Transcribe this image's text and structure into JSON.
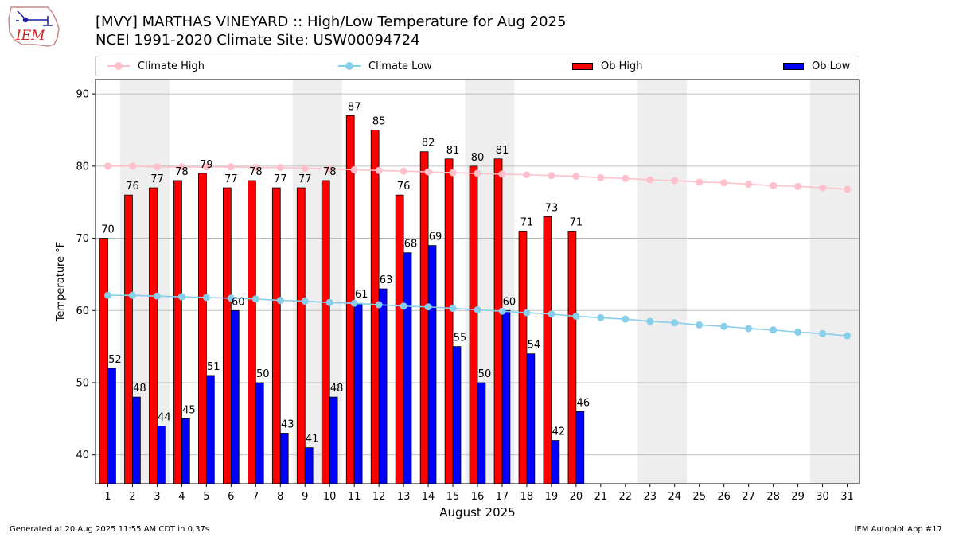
{
  "header": {
    "title_line1": "[MVY] MARTHAS VINEYARD :: High/Low Temperature for Aug 2025",
    "title_line2": "NCEI 1991-2020 Climate Site: USW00094724",
    "logo_text": "IEM"
  },
  "footer": {
    "generated": "Generated at 20 Aug 2025 11:55 AM CDT in 0.37s",
    "app": "IEM Autoplot App #17"
  },
  "colors": {
    "climate_high": "#ffc0cb",
    "climate_low": "#87ceeb",
    "ob_high": "#ff0000",
    "ob_low": "#0000ff",
    "weekend_band": "#eeeeee",
    "grid": "#b0b0b0"
  },
  "chart_data": {
    "type": "bar",
    "xlabel": "August 2025",
    "ylabel": "Temperature °F",
    "ylim": [
      36,
      92
    ],
    "yticks": [
      40,
      50,
      60,
      70,
      80,
      90
    ],
    "grid": "horizontal",
    "legend_position": "top",
    "days": [
      1,
      2,
      3,
      4,
      5,
      6,
      7,
      8,
      9,
      10,
      11,
      12,
      13,
      14,
      15,
      16,
      17,
      18,
      19,
      20,
      21,
      22,
      23,
      24,
      25,
      26,
      27,
      28,
      29,
      30,
      31
    ],
    "weekend_bands": [
      [
        2,
        3
      ],
      [
        9,
        10
      ],
      [
        16,
        17
      ],
      [
        23,
        24
      ],
      [
        30,
        31
      ]
    ],
    "series": [
      {
        "name": "Climate High",
        "kind": "line",
        "values": [
          80.0,
          80.0,
          79.9,
          79.9,
          79.9,
          79.9,
          79.8,
          79.8,
          79.7,
          79.6,
          79.5,
          79.4,
          79.3,
          79.2,
          79.1,
          79.0,
          78.9,
          78.8,
          78.7,
          78.6,
          78.4,
          78.3,
          78.1,
          78.0,
          77.8,
          77.7,
          77.5,
          77.3,
          77.2,
          77.0,
          76.8
        ]
      },
      {
        "name": "Climate Low",
        "kind": "line",
        "values": [
          62.1,
          62.1,
          62.0,
          61.9,
          61.8,
          61.7,
          61.6,
          61.4,
          61.3,
          61.1,
          61.0,
          60.8,
          60.6,
          60.5,
          60.3,
          60.1,
          59.9,
          59.7,
          59.5,
          59.2,
          59.0,
          58.8,
          58.5,
          58.3,
          58.0,
          57.8,
          57.5,
          57.3,
          57.0,
          56.8,
          56.5
        ]
      },
      {
        "name": "Ob High",
        "kind": "bar",
        "values": [
          70,
          76,
          77,
          78,
          79,
          77,
          78,
          77,
          77,
          78,
          87,
          85,
          76,
          82,
          81,
          80,
          81,
          71,
          73,
          71
        ]
      },
      {
        "name": "Ob Low",
        "kind": "bar",
        "values": [
          52,
          48,
          44,
          45,
          51,
          60,
          50,
          43,
          41,
          48,
          61,
          63,
          68,
          69,
          55,
          50,
          60,
          54,
          42,
          46
        ]
      }
    ]
  }
}
